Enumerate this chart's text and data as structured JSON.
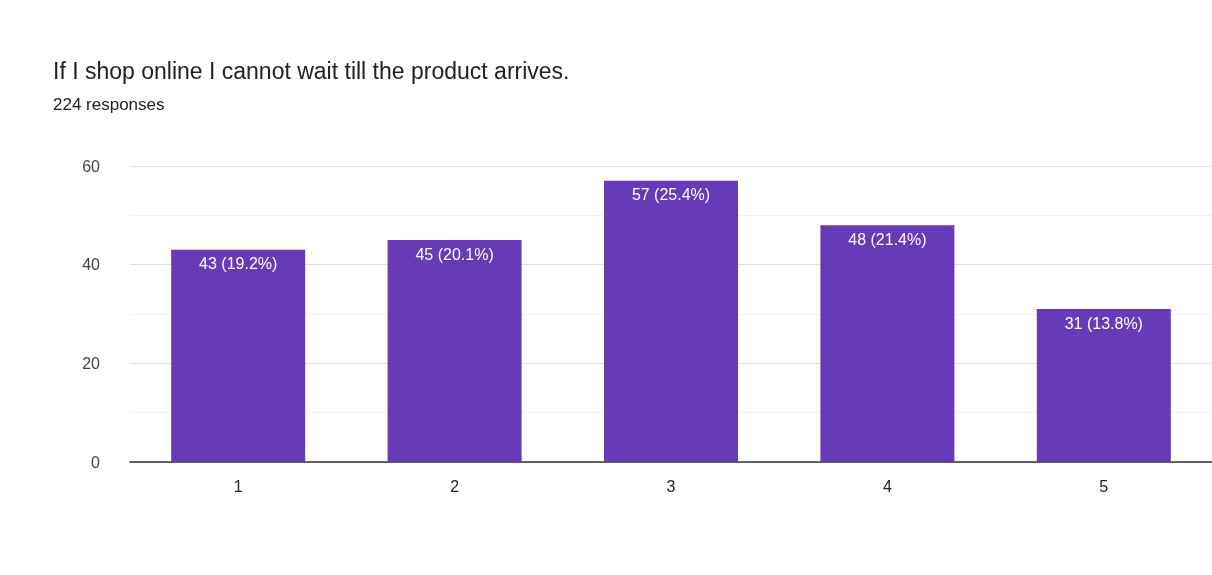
{
  "chart_data": {
    "type": "bar",
    "title": "If I shop online I cannot wait till the product arrives.",
    "subtitle": "224 responses",
    "categories": [
      "1",
      "2",
      "3",
      "4",
      "5"
    ],
    "values": [
      43,
      45,
      57,
      48,
      31
    ],
    "value_labels": [
      "43 (19.2%)",
      "45 (20.1%)",
      "57 (25.4%)",
      "48 (21.4%)",
      "31 (13.8%)"
    ],
    "color": "#673ab7",
    "ylim": [
      0,
      60
    ],
    "yticks": [
      0,
      {
        "value": 10,
        "label": null
      },
      20,
      {
        "value": 30,
        "label": null
      },
      40,
      {
        "value": 50,
        "label": null
      },
      60
    ],
    "grid": "y"
  }
}
